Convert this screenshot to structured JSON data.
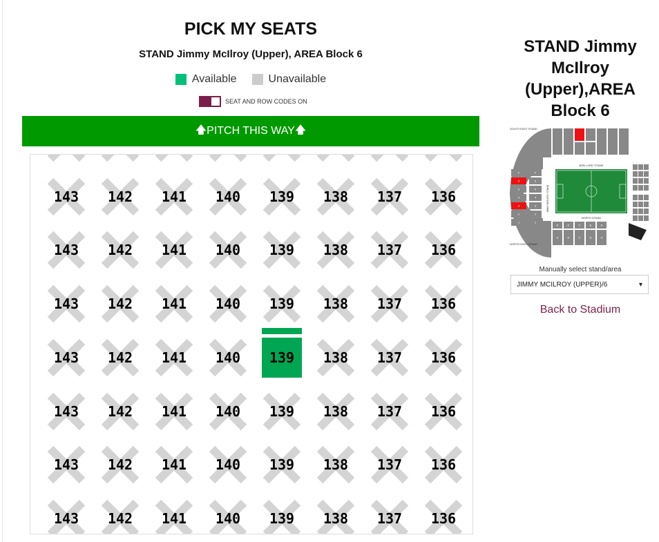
{
  "header": {
    "title": "PICK MY SEATS",
    "subtitle": "STAND Jimmy McIlroy (Upper), AREA Block 6"
  },
  "legend": [
    {
      "label": "Available",
      "color": "#00c07a"
    },
    {
      "label": "Unavailable",
      "color": "#cccccc"
    }
  ],
  "toggle": {
    "label": "SEAT AND ROW CODES ON",
    "on": true,
    "color": "#7a1f4b"
  },
  "pitch_banner": {
    "label": "PITCH THIS WAY",
    "icon": "arrow-up-icon",
    "color": "#009900"
  },
  "seat_columns": [
    "143",
    "142",
    "141",
    "140",
    "139",
    "138",
    "137",
    "136"
  ],
  "seat_rows": 8,
  "available_seats": [
    {
      "row": 5,
      "seat": "139"
    }
  ],
  "colors": {
    "available": "#00a651",
    "unavailable": "#d4d4d4",
    "accent": "#7a1f4b",
    "selected_block": "#ee1111"
  },
  "sidebar": {
    "title": "STAND Jimmy McIlroy (Upper),AREA Block 6",
    "map": {
      "stands": [
        "SOUTH EAST STAND",
        "BOB LORD STAND",
        "NORTH STAND",
        "NORTH EAST STAND",
        "JIMMY MCILROY STAND"
      ]
    },
    "select_label": "Manually select stand/area",
    "select_value": "JIMMY MCILROY (UPPER)/6",
    "back_link": "Back to Stadium"
  }
}
